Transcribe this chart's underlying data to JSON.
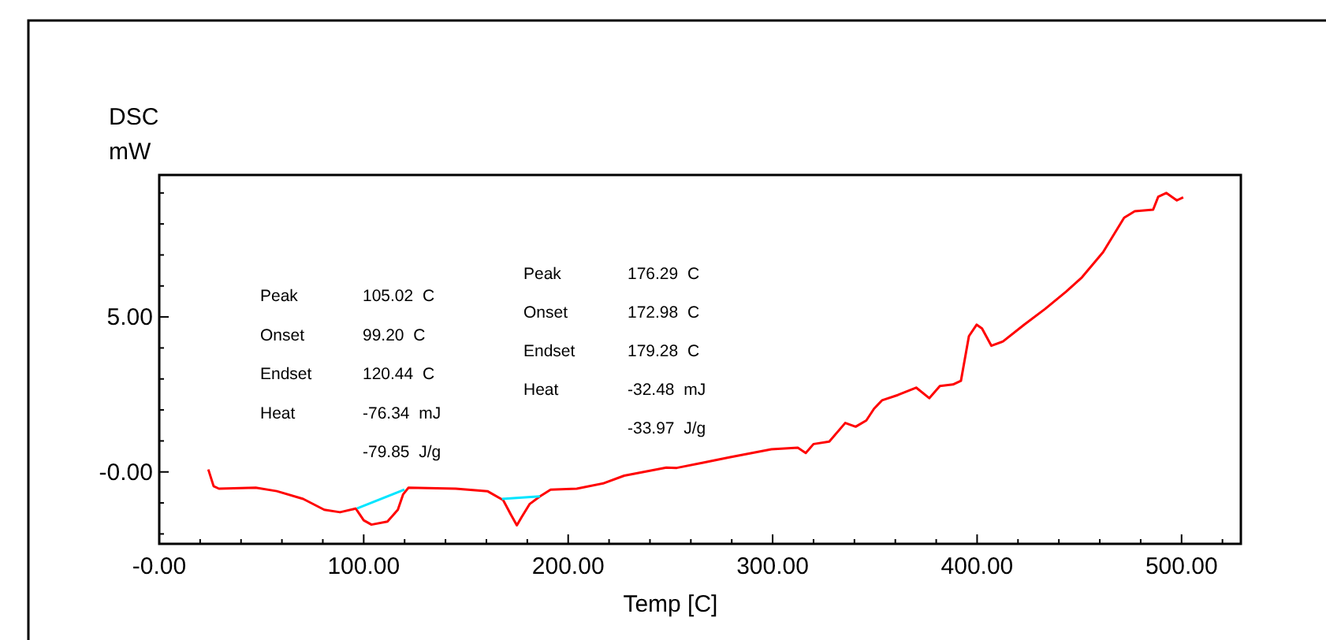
{
  "chart_data": {
    "type": "line",
    "ylabel": "DSC mW",
    "xlabel": "Temp [C]",
    "xlim": [
      0,
      529
    ],
    "ylim": [
      -2.32,
      9.58
    ],
    "xticks": [
      {
        "value": 0,
        "label": "-0.00"
      },
      {
        "value": 20,
        "label": null
      },
      {
        "value": 40,
        "label": null
      },
      {
        "value": 60,
        "label": null
      },
      {
        "value": 80,
        "label": null
      },
      {
        "value": 100,
        "label": "100.00"
      },
      {
        "value": 120,
        "label": null
      },
      {
        "value": 140,
        "label": null
      },
      {
        "value": 160,
        "label": null
      },
      {
        "value": 180,
        "label": null
      },
      {
        "value": 200,
        "label": "200.00"
      },
      {
        "value": 220,
        "label": null
      },
      {
        "value": 240,
        "label": null
      },
      {
        "value": 260,
        "label": null
      },
      {
        "value": 280,
        "label": null
      },
      {
        "value": 300,
        "label": "300.00"
      },
      {
        "value": 320,
        "label": null
      },
      {
        "value": 340,
        "label": null
      },
      {
        "value": 360,
        "label": null
      },
      {
        "value": 380,
        "label": null
      },
      {
        "value": 400,
        "label": "400.00"
      },
      {
        "value": 420,
        "label": null
      },
      {
        "value": 440,
        "label": null
      },
      {
        "value": 460,
        "label": null
      },
      {
        "value": 480,
        "label": null
      },
      {
        "value": 500,
        "label": "500.00"
      },
      {
        "value": 520,
        "label": null
      }
    ],
    "yticks": [
      {
        "value": -2,
        "label": null
      },
      {
        "value": -1,
        "label": null
      },
      {
        "value": 0,
        "label": "-0.00"
      },
      {
        "value": 1,
        "label": null
      },
      {
        "value": 2,
        "label": null
      },
      {
        "value": 3,
        "label": null
      },
      {
        "value": 4,
        "label": null
      },
      {
        "value": 5,
        "label": "5.00"
      },
      {
        "value": 6,
        "label": null
      },
      {
        "value": 7,
        "label": null
      },
      {
        "value": 8,
        "label": null
      },
      {
        "value": 9,
        "label": null
      }
    ],
    "grid": false,
    "marker": "none",
    "line_style": "solid",
    "series": [
      {
        "color": "#ff0000",
        "x": [
          24.0,
          26.6,
          29.2,
          47.2,
          57.5,
          70.4,
          80.7,
          88.4,
          96.1,
          100,
          103.8,
          111.6,
          116.7,
          119.3,
          121.9,
          145,
          160.5,
          168.2,
          172.0,
          174.9,
          177.2,
          181.1,
          186.2,
          191.4,
          204.2,
          217.1,
          227.4,
          248,
          253.1,
          266,
          278.8,
          299.4,
          312.3,
          316.2,
          320,
          327.7,
          335.5,
          340.6,
          345.8,
          349.6,
          353.5,
          361.2,
          370.2,
          376.6,
          381.8,
          388.2,
          392.1,
          396,
          399.8,
          402.4,
          407,
          412.7,
          423,
          433.3,
          443.6,
          451.3,
          461.6,
          471.9,
          477.1,
          486.1,
          488.6,
          492.5,
          497.7,
          500.8
        ],
        "values": [
          0.08,
          -0.46,
          -0.54,
          -0.51,
          -0.62,
          -0.87,
          -1.22,
          -1.3,
          -1.18,
          -1.56,
          -1.7,
          -1.6,
          -1.22,
          -0.72,
          -0.51,
          -0.54,
          -0.62,
          -0.91,
          -1.38,
          -1.72,
          -1.46,
          -1.04,
          -0.79,
          -0.57,
          -0.54,
          -0.37,
          -0.12,
          0.14,
          0.13,
          0.3,
          0.47,
          0.73,
          0.78,
          0.61,
          0.9,
          0.98,
          1.58,
          1.46,
          1.66,
          2.04,
          2.31,
          2.48,
          2.72,
          2.38,
          2.77,
          2.82,
          2.94,
          4.38,
          4.75,
          4.63,
          4.07,
          4.21,
          4.75,
          5.26,
          5.82,
          6.28,
          7.09,
          8.2,
          8.41,
          8.46,
          8.88,
          9.0,
          8.76,
          8.86
        ]
      },
      {
        "color": "#00e5ff",
        "x": [
          96.7,
          119.9
        ],
        "values": [
          -1.18,
          -0.57
        ]
      },
      {
        "color": "#00e5ff",
        "x": [
          167.6,
          186.2
        ],
        "values": [
          -0.87,
          -0.79
        ]
      }
    ],
    "annotations": [
      "Peak\t105.02  C",
      "Onset\t99.20  C",
      "Endset\t120.44  C",
      "Heat\t-76.34  mJ",
      "\t-79.85  J/g",
      "Peak\t176.29  C",
      "Onset\t172.98  C",
      "Endset\t179.28  C",
      "Heat\t-32.48  mJ",
      "\t-33.97  J/g"
    ]
  }
}
